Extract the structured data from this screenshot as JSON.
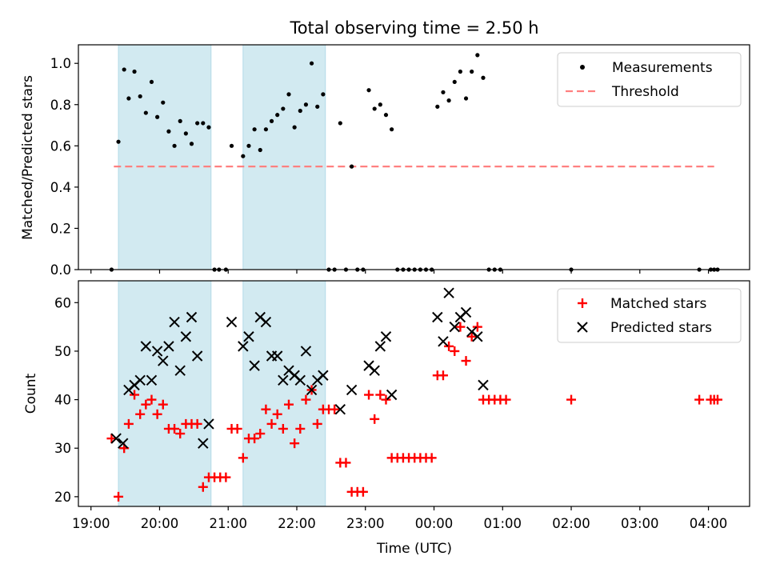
{
  "title": "Total observing time = 2.50 h",
  "chart_data": [
    {
      "type": "scatter",
      "ylabel": "Matched/Predicted stars",
      "ylim": [
        0,
        1.09
      ],
      "yticks": [
        "0.0",
        "0.2",
        "0.4",
        "0.6",
        "0.8",
        "1.0"
      ],
      "ytick_values": [
        0,
        0.2,
        0.4,
        0.6,
        0.8,
        1.0
      ],
      "legend": [
        "Measurements",
        "Threshold"
      ],
      "legend_position": "upper right",
      "threshold": {
        "value": 0.5,
        "x_start": "19:20",
        "x_end": "04:05",
        "color": "#ff8080"
      },
      "series": [
        {
          "name": "Measurements",
          "marker": "dot",
          "color": "#000000",
          "points": [
            [
              "19:18",
              0.0
            ],
            [
              "19:24",
              0.62
            ],
            [
              "19:29",
              0.97
            ],
            [
              "19:33",
              0.83
            ],
            [
              "19:38",
              0.96
            ],
            [
              "19:43",
              0.84
            ],
            [
              "19:48",
              0.76
            ],
            [
              "19:53",
              0.91
            ],
            [
              "19:58",
              0.74
            ],
            [
              "20:03",
              0.81
            ],
            [
              "20:08",
              0.67
            ],
            [
              "20:13",
              0.6
            ],
            [
              "20:18",
              0.72
            ],
            [
              "20:23",
              0.66
            ],
            [
              "20:28",
              0.61
            ],
            [
              "20:33",
              0.71
            ],
            [
              "20:38",
              0.71
            ],
            [
              "20:43",
              0.69
            ],
            [
              "20:48",
              0.0
            ],
            [
              "20:52",
              0.0
            ],
            [
              "20:58",
              0.0
            ],
            [
              "21:03",
              0.6
            ],
            [
              "21:13",
              0.55
            ],
            [
              "21:18",
              0.6
            ],
            [
              "21:23",
              0.68
            ],
            [
              "21:28",
              0.58
            ],
            [
              "21:33",
              0.68
            ],
            [
              "21:38",
              0.72
            ],
            [
              "21:43",
              0.75
            ],
            [
              "21:48",
              0.78
            ],
            [
              "21:53",
              0.85
            ],
            [
              "21:58",
              0.69
            ],
            [
              "22:03",
              0.77
            ],
            [
              "22:08",
              0.8
            ],
            [
              "22:13",
              1.0
            ],
            [
              "22:18",
              0.79
            ],
            [
              "22:23",
              0.85
            ],
            [
              "22:28",
              0.0
            ],
            [
              "22:33",
              0.0
            ],
            [
              "22:38",
              0.71
            ],
            [
              "22:43",
              0.0
            ],
            [
              "22:48",
              0.5
            ],
            [
              "22:53",
              0.0
            ],
            [
              "22:58",
              0.0
            ],
            [
              "23:03",
              0.87
            ],
            [
              "23:08",
              0.78
            ],
            [
              "23:13",
              0.8
            ],
            [
              "23:18",
              0.75
            ],
            [
              "23:23",
              0.68
            ],
            [
              "23:28",
              0.0
            ],
            [
              "23:33",
              0.0
            ],
            [
              "23:38",
              0.0
            ],
            [
              "23:43",
              0.0
            ],
            [
              "23:48",
              0.0
            ],
            [
              "23:53",
              0.0
            ],
            [
              "23:58",
              0.0
            ],
            [
              "00:03",
              0.79
            ],
            [
              "00:08",
              0.86
            ],
            [
              "00:13",
              0.82
            ],
            [
              "00:18",
              0.91
            ],
            [
              "00:23",
              0.96
            ],
            [
              "00:28",
              0.83
            ],
            [
              "00:33",
              0.96
            ],
            [
              "00:38",
              1.04
            ],
            [
              "00:43",
              0.93
            ],
            [
              "00:48",
              0.0
            ],
            [
              "00:53",
              0.0
            ],
            [
              "00:58",
              0.0
            ],
            [
              "02:00",
              0.0
            ],
            [
              "03:52",
              0.0
            ],
            [
              "04:02",
              0.0
            ],
            [
              "04:05",
              0.0
            ],
            [
              "04:08",
              0.0
            ]
          ]
        }
      ]
    },
    {
      "type": "scatter",
      "xlabel": "Time (UTC)",
      "ylabel": "Count",
      "ylim": [
        18,
        64.5
      ],
      "yticks": [
        "20",
        "30",
        "40",
        "50",
        "60"
      ],
      "ytick_values": [
        20,
        30,
        40,
        50,
        60
      ],
      "legend": [
        "Matched stars",
        "Predicted stars"
      ],
      "legend_position": "upper right",
      "series": [
        {
          "name": "Matched stars",
          "marker": "plus",
          "color": "#ff0000",
          "points": [
            [
              "19:18",
              32
            ],
            [
              "19:24",
              20
            ],
            [
              "19:29",
              30
            ],
            [
              "19:33",
              35
            ],
            [
              "19:38",
              41
            ],
            [
              "19:43",
              37
            ],
            [
              "19:48",
              39
            ],
            [
              "19:53",
              40
            ],
            [
              "19:58",
              37
            ],
            [
              "20:03",
              39
            ],
            [
              "20:08",
              34
            ],
            [
              "20:13",
              34
            ],
            [
              "20:18",
              33
            ],
            [
              "20:23",
              35
            ],
            [
              "20:28",
              35
            ],
            [
              "20:33",
              35
            ],
            [
              "20:38",
              22
            ],
            [
              "20:43",
              24
            ],
            [
              "20:48",
              24
            ],
            [
              "20:53",
              24
            ],
            [
              "20:58",
              24
            ],
            [
              "21:03",
              34
            ],
            [
              "21:08",
              34
            ],
            [
              "21:13",
              28
            ],
            [
              "21:18",
              32
            ],
            [
              "21:23",
              32
            ],
            [
              "21:28",
              33
            ],
            [
              "21:33",
              38
            ],
            [
              "21:38",
              35
            ],
            [
              "21:43",
              37
            ],
            [
              "21:48",
              34
            ],
            [
              "21:53",
              39
            ],
            [
              "21:58",
              31
            ],
            [
              "22:03",
              34
            ],
            [
              "22:08",
              40
            ],
            [
              "22:13",
              42
            ],
            [
              "22:18",
              35
            ],
            [
              "22:23",
              38
            ],
            [
              "22:28",
              38
            ],
            [
              "22:33",
              38
            ],
            [
              "22:38",
              27
            ],
            [
              "22:43",
              27
            ],
            [
              "22:48",
              21
            ],
            [
              "22:53",
              21
            ],
            [
              "22:58",
              21
            ],
            [
              "23:03",
              41
            ],
            [
              "23:08",
              36
            ],
            [
              "23:13",
              41
            ],
            [
              "23:18",
              40
            ],
            [
              "23:23",
              28
            ],
            [
              "23:28",
              28
            ],
            [
              "23:33",
              28
            ],
            [
              "23:38",
              28
            ],
            [
              "23:43",
              28
            ],
            [
              "23:48",
              28
            ],
            [
              "23:53",
              28
            ],
            [
              "23:58",
              28
            ],
            [
              "00:03",
              45
            ],
            [
              "00:08",
              45
            ],
            [
              "00:13",
              51
            ],
            [
              "00:18",
              50
            ],
            [
              "00:23",
              55
            ],
            [
              "00:28",
              48
            ],
            [
              "00:33",
              53
            ],
            [
              "00:38",
              55
            ],
            [
              "00:43",
              40
            ],
            [
              "00:48",
              40
            ],
            [
              "00:53",
              40
            ],
            [
              "00:58",
              40
            ],
            [
              "01:03",
              40
            ],
            [
              "02:00",
              40
            ],
            [
              "03:52",
              40
            ],
            [
              "04:02",
              40
            ],
            [
              "04:05",
              40
            ],
            [
              "04:08",
              40
            ]
          ]
        },
        {
          "name": "Predicted stars",
          "marker": "x",
          "color": "#000000",
          "points": [
            [
              "19:22",
              32
            ],
            [
              "19:28",
              31
            ],
            [
              "19:33",
              42
            ],
            [
              "19:38",
              43
            ],
            [
              "19:43",
              44
            ],
            [
              "19:48",
              51
            ],
            [
              "19:53",
              44
            ],
            [
              "19:58",
              50
            ],
            [
              "20:03",
              48
            ],
            [
              "20:08",
              51
            ],
            [
              "20:13",
              56
            ],
            [
              "20:18",
              46
            ],
            [
              "20:23",
              53
            ],
            [
              "20:28",
              57
            ],
            [
              "20:33",
              49
            ],
            [
              "20:43",
              35
            ],
            [
              "20:38",
              31
            ],
            [
              "21:03",
              56
            ],
            [
              "21:13",
              51
            ],
            [
              "21:18",
              53
            ],
            [
              "21:23",
              47
            ],
            [
              "21:28",
              57
            ],
            [
              "21:33",
              56
            ],
            [
              "21:38",
              49
            ],
            [
              "21:43",
              49
            ],
            [
              "21:48",
              44
            ],
            [
              "21:53",
              46
            ],
            [
              "21:58",
              45
            ],
            [
              "22:03",
              44
            ],
            [
              "22:08",
              50
            ],
            [
              "22:13",
              42
            ],
            [
              "22:18",
              44
            ],
            [
              "22:23",
              45
            ],
            [
              "22:38",
              38
            ],
            [
              "22:48",
              42
            ],
            [
              "23:03",
              47
            ],
            [
              "23:08",
              46
            ],
            [
              "23:13",
              51
            ],
            [
              "23:18",
              53
            ],
            [
              "23:23",
              41
            ],
            [
              "00:03",
              57
            ],
            [
              "00:08",
              52
            ],
            [
              "00:13",
              62
            ],
            [
              "00:18",
              55
            ],
            [
              "00:23",
              57
            ],
            [
              "00:28",
              58
            ],
            [
              "00:33",
              54
            ],
            [
              "00:38",
              53
            ],
            [
              "00:43",
              43
            ]
          ]
        }
      ]
    }
  ],
  "shaded_intervals": [
    [
      "19:24",
      "20:45"
    ],
    [
      "21:13",
      "22:25"
    ]
  ],
  "shade_color": "#add8e6",
  "xlim": [
    "18:49",
    "04:36"
  ],
  "xticks": [
    "19:00",
    "20:00",
    "21:00",
    "22:00",
    "23:00",
    "00:00",
    "01:00",
    "02:00",
    "03:00",
    "04:00"
  ]
}
